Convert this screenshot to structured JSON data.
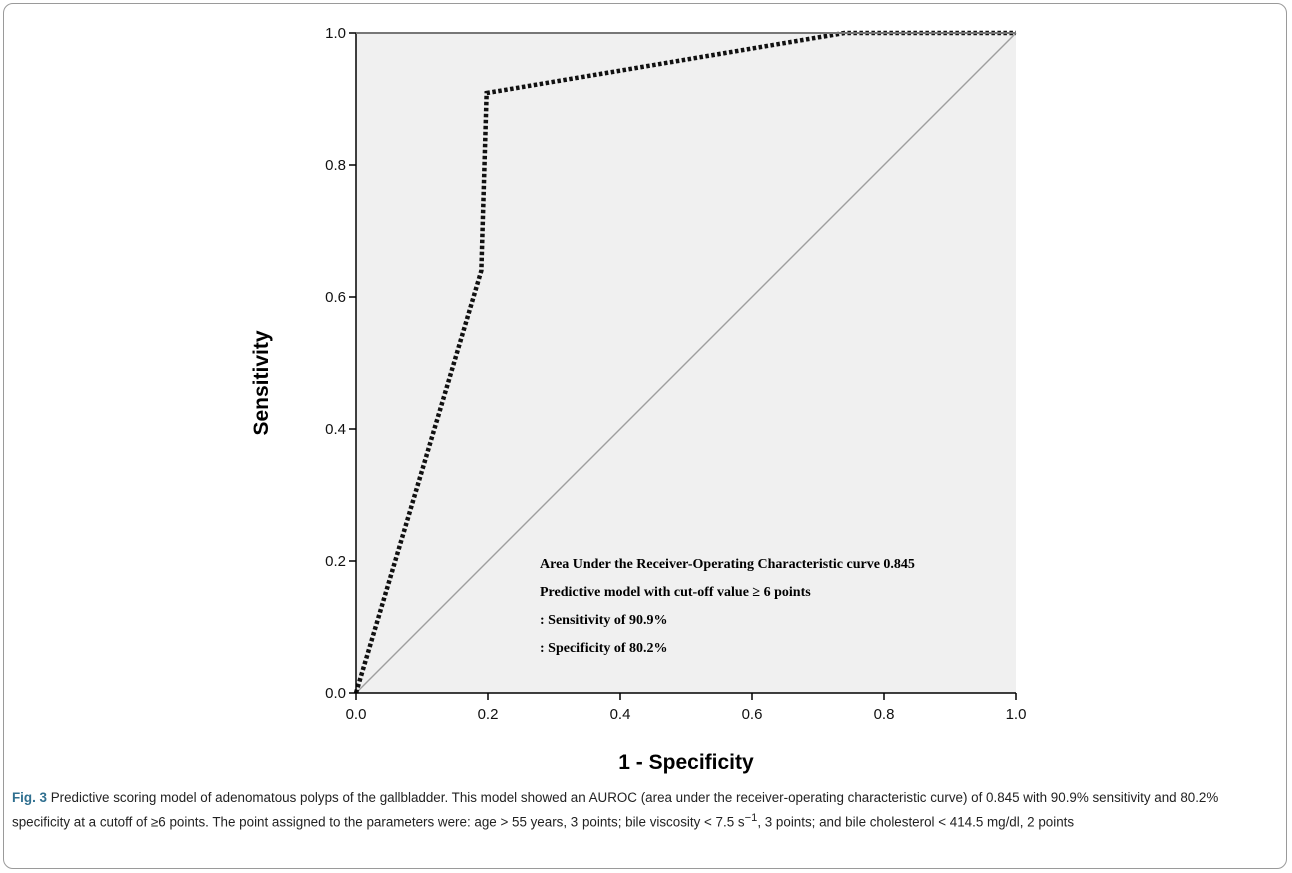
{
  "chart_data": {
    "type": "line",
    "xlabel": "1 - Specificity",
    "ylabel": "Sensitivity",
    "xlim": [
      0.0,
      1.0
    ],
    "ylim": [
      0.0,
      1.0
    ],
    "x_ticks": [
      "0.0",
      "0.2",
      "0.4",
      "0.6",
      "0.8",
      "1.0"
    ],
    "y_ticks": [
      "0.0",
      "0.2",
      "0.4",
      "0.6",
      "0.8",
      "1.0"
    ],
    "grid": false,
    "series": [
      {
        "style": "dotted",
        "color": "#111111",
        "x": [
          0.0,
          0.19,
          0.198,
          0.74,
          1.0
        ],
        "y": [
          0.0,
          0.64,
          0.909,
          1.0,
          1.0
        ]
      },
      {
        "style": "reference-diagonal",
        "color": "#9e9e9e",
        "x": [
          0.0,
          1.0
        ],
        "y": [
          0.0,
          1.0
        ]
      }
    ],
    "annotations": [
      "Area Under the Receiver-Operating Characteristic curve 0.845",
      "Predictive model with cut-off value ≥ 6 points",
      ": Sensitivity of 90.9%",
      ": Specificity of 80.2%"
    ],
    "plot_background": "#f0f0f0"
  },
  "caption": {
    "label": "Fig. 3",
    "text": " Predictive scoring model of adenomatous polyps of the gallbladder. This model showed an AUROC (area under the receiver-operating characteristic curve) of 0.845 with 90.9% sensitivity and 80.2% specificity at a cutoff of ≥6 points. The point assigned to the parameters were: age > 55 years, 3 points; bile viscosity < 7.5 s",
    "superscript": "−1",
    "text_end": ", 3 points; and bile cholesterol < 414.5 mg/dl, 2 points"
  }
}
